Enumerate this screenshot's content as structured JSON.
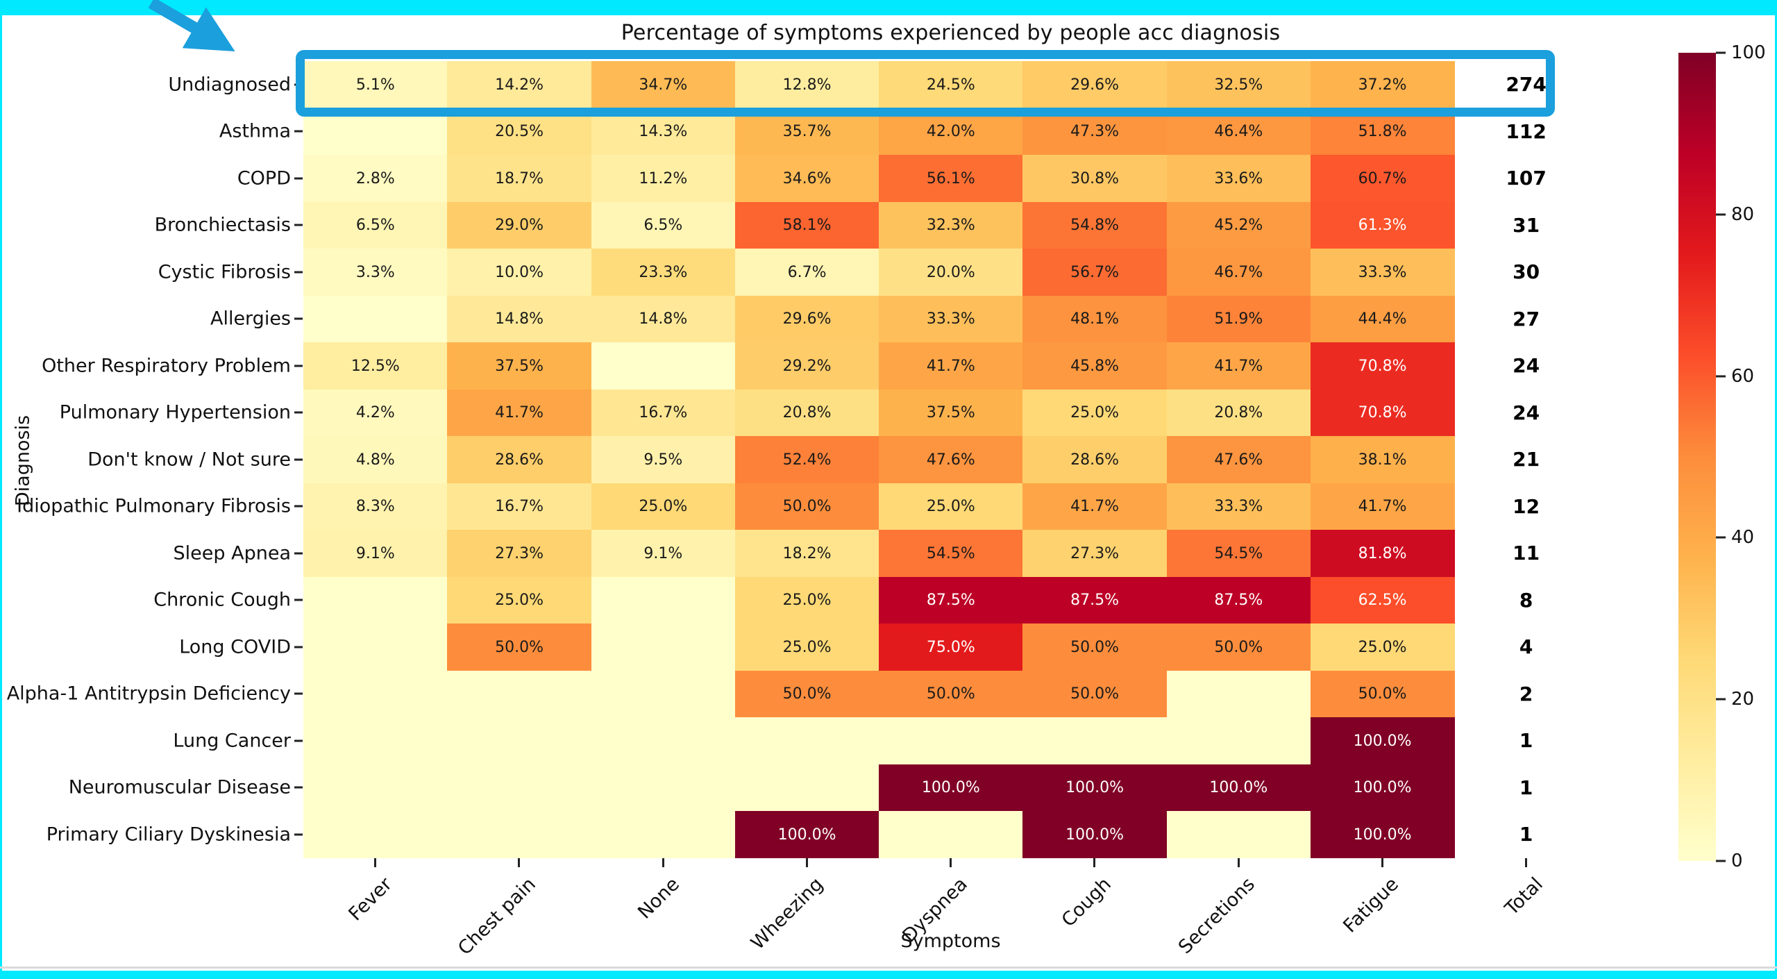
{
  "frame": {
    "border_color": "#00e9ff",
    "annotation_color": "#1b9fdd"
  },
  "chart_data": {
    "type": "heatmap",
    "title": "Percentage of symptoms experienced by people acc diagnosis",
    "xlabel": "Symptoms",
    "ylabel": "Diagnosis",
    "columns": [
      "Fever",
      "Chest pain",
      "None",
      "Wheezing",
      "Dyspnea",
      "Cough",
      "Secretions",
      "Fatigue"
    ],
    "total_column_label": "Total",
    "value_range": [
      0,
      100
    ],
    "annotation_format": "one_decimal_percent",
    "highlighted_row": "Undiagnosed",
    "rows": [
      {
        "label": "Undiagnosed",
        "values": [
          5.1,
          14.2,
          34.7,
          12.8,
          24.5,
          29.6,
          32.5,
          37.2
        ],
        "total": 274
      },
      {
        "label": "Asthma",
        "values": [
          null,
          20.5,
          14.3,
          35.7,
          42.0,
          47.3,
          46.4,
          51.8
        ],
        "total": 112
      },
      {
        "label": "COPD",
        "values": [
          2.8,
          18.7,
          11.2,
          34.6,
          56.1,
          30.8,
          33.6,
          60.7
        ],
        "total": 107
      },
      {
        "label": "Bronchiectasis",
        "values": [
          6.5,
          29.0,
          6.5,
          58.1,
          32.3,
          54.8,
          45.2,
          61.3
        ],
        "total": 31
      },
      {
        "label": "Cystic Fibrosis",
        "values": [
          3.3,
          10.0,
          23.3,
          6.7,
          20.0,
          56.7,
          46.7,
          33.3
        ],
        "total": 30
      },
      {
        "label": "Allergies",
        "values": [
          null,
          14.8,
          14.8,
          29.6,
          33.3,
          48.1,
          51.9,
          44.4
        ],
        "total": 27
      },
      {
        "label": "Other Respiratory Problem",
        "values": [
          12.5,
          37.5,
          null,
          29.2,
          41.7,
          45.8,
          41.7,
          70.8
        ],
        "total": 24
      },
      {
        "label": "Pulmonary Hypertension",
        "values": [
          4.2,
          41.7,
          16.7,
          20.8,
          37.5,
          25.0,
          20.8,
          70.8
        ],
        "total": 24
      },
      {
        "label": "Don't know / Not sure",
        "values": [
          4.8,
          28.6,
          9.5,
          52.4,
          47.6,
          28.6,
          47.6,
          38.1
        ],
        "total": 21
      },
      {
        "label": "Idiopathic Pulmonary Fibrosis",
        "values": [
          8.3,
          16.7,
          25.0,
          50.0,
          25.0,
          41.7,
          33.3,
          41.7
        ],
        "total": 12
      },
      {
        "label": "Sleep Apnea",
        "values": [
          9.1,
          27.3,
          9.1,
          18.2,
          54.5,
          27.3,
          54.5,
          81.8
        ],
        "total": 11
      },
      {
        "label": "Chronic Cough",
        "values": [
          null,
          25.0,
          null,
          25.0,
          87.5,
          87.5,
          87.5,
          62.5
        ],
        "total": 8
      },
      {
        "label": "Long COVID",
        "values": [
          null,
          50.0,
          null,
          25.0,
          75.0,
          50.0,
          50.0,
          25.0
        ],
        "total": 4
      },
      {
        "label": "Alpha-1 Antitrypsin Deficiency",
        "values": [
          null,
          null,
          null,
          50.0,
          50.0,
          50.0,
          null,
          50.0
        ],
        "total": 2
      },
      {
        "label": "Lung Cancer",
        "values": [
          null,
          null,
          null,
          null,
          null,
          null,
          null,
          100.0
        ],
        "total": 1
      },
      {
        "label": "Neuromuscular Disease",
        "values": [
          null,
          null,
          null,
          null,
          100.0,
          100.0,
          100.0,
          100.0
        ],
        "total": 1
      },
      {
        "label": "Primary Ciliary Dyskinesia",
        "values": [
          null,
          null,
          null,
          100.0,
          null,
          100.0,
          null,
          100.0
        ],
        "total": 1
      }
    ],
    "colorbar": {
      "ticks": [
        0,
        20,
        40,
        60,
        80,
        100
      ],
      "colormap": "YlOrRd",
      "stops": [
        "#ffffcc",
        "#ffeda0",
        "#fed976",
        "#feb24c",
        "#fd8d3c",
        "#fc4e2a",
        "#e31a1c",
        "#bd0026",
        "#800026"
      ]
    }
  }
}
